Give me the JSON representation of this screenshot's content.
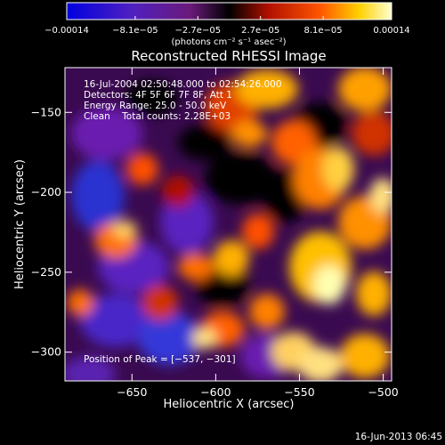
{
  "chart_data": {
    "type": "heatmap",
    "title": "Reconstructed RHESSI Image",
    "xlabel": "Heliocentric X (arcsec)",
    "ylabel": "Heliocentric Y (arcsec)",
    "xlim": [
      -690,
      -495
    ],
    "ylim": [
      -318,
      -122
    ],
    "x_ticks": [
      -650,
      -600,
      -550,
      -500
    ],
    "x_tick_labels": [
      "−650",
      "−600",
      "−550",
      "−500"
    ],
    "y_ticks": [
      -300,
      -250,
      -200,
      -150
    ],
    "y_tick_labels": [
      "−300",
      "−250",
      "−200",
      "−150"
    ],
    "colorbar": {
      "range": [
        -0.00014,
        0.00014
      ],
      "ticks": [
        -0.00014,
        -8.1e-05,
        -2.7e-05,
        2.7e-05,
        8.1e-05,
        0.00014
      ],
      "tick_labels": [
        "−0.00014",
        "−8.1e−05",
        "−2.7e−05",
        "2.7e−05",
        "8.1e−05",
        "0.00014"
      ],
      "unit_label": "(photons cm⁻² s⁻¹ asec⁻²)",
      "colors": [
        "#0000e0",
        "#6020b0",
        "#7a1a8a",
        "#000000",
        "#b01000",
        "#ff5000",
        "#ffd000",
        "#ffffc0"
      ]
    },
    "annotations": [
      "16-Jul-2004 02:50:48.000 to 02:54:26.000",
      "Detectors: 4F 5F 6F 7F 8F, Att 1",
      "Energy Range: 25.0 - 50.0 keV",
      "Clean    Total counts: 2.28E+03"
    ],
    "peak_label": "Position of Peak = [−537, −301]",
    "peak": [
      -537,
      -301
    ],
    "grid": false,
    "legend": "none"
  },
  "footer": {
    "timestamp": "16-Jun-2013 06:45"
  }
}
